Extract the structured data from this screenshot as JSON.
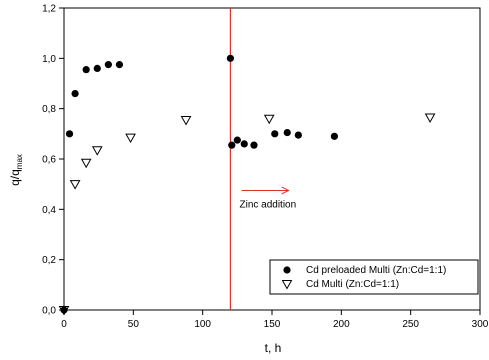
{
  "chart_data": {
    "type": "scatter",
    "xlabel": "t, h",
    "ylabel_main": "q/q",
    "ylabel_sub": "max",
    "xlim": [
      0,
      300
    ],
    "ylim": [
      0,
      1.2
    ],
    "x_ticks": [
      0,
      50,
      100,
      150,
      200,
      250,
      300
    ],
    "x_tick_labels": [
      "0",
      "50",
      "100",
      "150",
      "200",
      "250",
      "300"
    ],
    "y_ticks": [
      0,
      0.2,
      0.4,
      0.6,
      0.8,
      1.0,
      1.2
    ],
    "y_tick_labels": [
      "0,0",
      "0,2",
      "0,4",
      "0,6",
      "0,8",
      "1,0",
      "1,2"
    ],
    "grid": false,
    "legend_position": "bottom-right",
    "vertical_line": {
      "x": 120,
      "color": "#e0302a"
    },
    "annotation": {
      "text": "Zinc addition",
      "arrow_from_x": 128,
      "arrow_to_x": 162,
      "y": 0.475,
      "color": "#e0302a"
    },
    "series": [
      {
        "name": "Cd preloaded Multi (Zn:Cd=1:1)",
        "marker": "filled-circle",
        "points": [
          [
            0,
            0.0
          ],
          [
            4,
            0.7
          ],
          [
            8,
            0.86
          ],
          [
            16,
            0.955
          ],
          [
            24,
            0.96
          ],
          [
            32,
            0.975
          ],
          [
            40,
            0.975
          ],
          [
            120,
            1.0
          ],
          [
            121,
            0.655
          ],
          [
            125,
            0.675
          ],
          [
            130,
            0.66
          ],
          [
            137,
            0.655
          ],
          [
            152,
            0.7
          ],
          [
            161,
            0.705
          ],
          [
            169,
            0.695
          ],
          [
            195,
            0.69
          ]
        ]
      },
      {
        "name": "Cd Multi (Zn:Cd=1:1)",
        "marker": "open-triangle-down",
        "points": [
          [
            0,
            0.0
          ],
          [
            8,
            0.5
          ],
          [
            16,
            0.585
          ],
          [
            24,
            0.635
          ],
          [
            48,
            0.685
          ],
          [
            88,
            0.755
          ],
          [
            148,
            0.76
          ],
          [
            264,
            0.765
          ]
        ]
      }
    ]
  }
}
